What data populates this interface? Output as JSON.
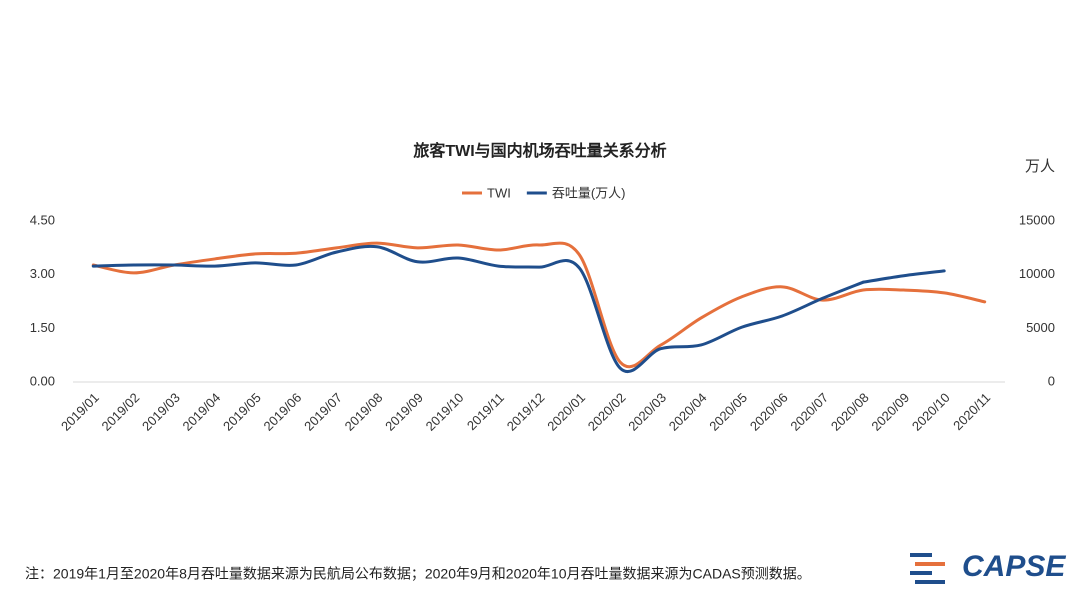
{
  "chart_data": {
    "type": "line",
    "title": "旅客TWI与国内机场吞吐量关系分析",
    "y2_unit": "万人",
    "categories": [
      "2019/01",
      "2019/02",
      "2019/03",
      "2019/04",
      "2019/05",
      "2019/06",
      "2019/07",
      "2019/08",
      "2019/09",
      "2019/10",
      "2019/11",
      "2019/12",
      "2020/01",
      "2020/02",
      "2020/03",
      "2020/04",
      "2020/05",
      "2020/06",
      "2020/07",
      "2020/08",
      "2020/09",
      "2020/10",
      "2020/11"
    ],
    "series": [
      {
        "name": "TWI",
        "color": "#e5703c",
        "axis": "y",
        "values": [
          3.27,
          3.05,
          3.27,
          3.44,
          3.58,
          3.6,
          3.75,
          3.88,
          3.75,
          3.83,
          3.69,
          3.83,
          3.55,
          0.56,
          1.03,
          1.79,
          2.38,
          2.66,
          2.29,
          2.57,
          2.57,
          2.49,
          2.24
        ]
      },
      {
        "name": "吞吐量(万人)",
        "color": "#1f4e8c",
        "axis": "y2",
        "dotted_from": 19,
        "values": [
          10800,
          10900,
          10900,
          10800,
          11100,
          10900,
          12100,
          12600,
          11200,
          11550,
          10800,
          10700,
          10600,
          1300,
          3100,
          3450,
          5100,
          6150,
          7800,
          9300,
          9900,
          10350,
          null
        ]
      }
    ],
    "ylim": [
      0,
      4.5
    ],
    "yticks": [
      {
        "value": 0,
        "label": "0.00"
      },
      {
        "value": 1.5,
        "label": "1.50"
      },
      {
        "value": 3,
        "label": "3.00"
      },
      {
        "value": 4.5,
        "label": "4.50"
      }
    ],
    "y2lim": [
      0,
      15000
    ],
    "y2ticks": [
      0,
      5000,
      10000,
      15000
    ],
    "grid": false,
    "legend": "top"
  },
  "footnote": "注：2019年1月至2020年8月吞吐量数据来源为民航局公布数据；2020年9月和2020年10月吞吐量数据来源为CADAS预测数据。",
  "logo": "CAPSE"
}
